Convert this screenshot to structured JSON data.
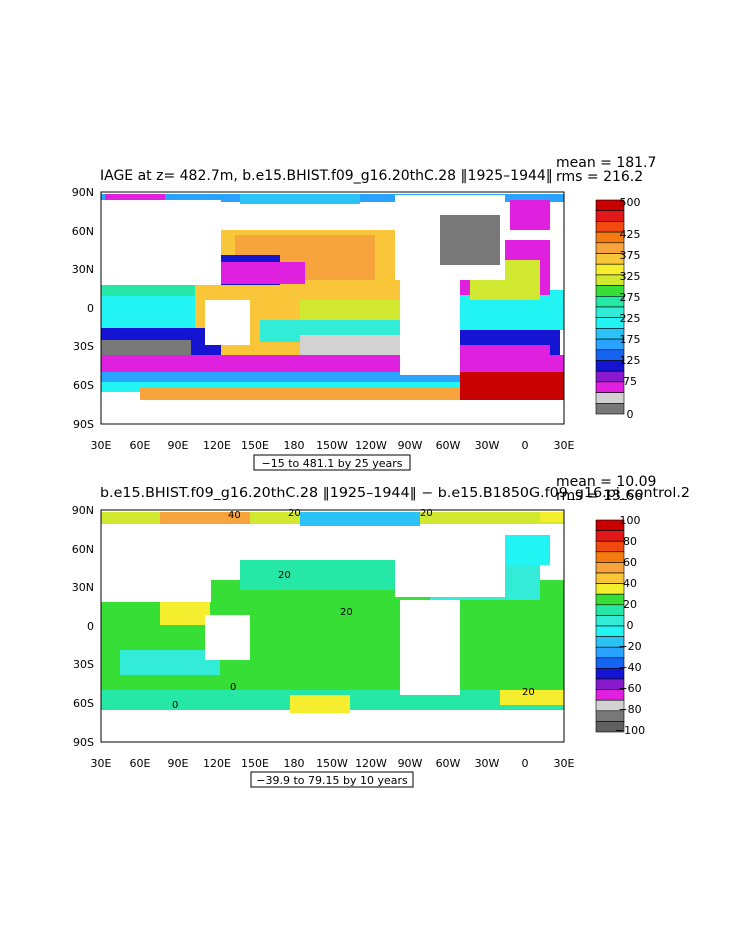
{
  "panels": [
    {
      "title": "IAGE at z= 482.7m, b.e15.BHIST.f09_g16.20thC.28 ‖1925–1944‖",
      "stats": {
        "mean": "mean = 181.7",
        "rms": "rms = 216.2"
      },
      "range_note": "−15 to 481.1 by 25 years",
      "colorbar": {
        "labels": [
          "500",
          "425",
          "375",
          "325",
          "275",
          "225",
          "175",
          "125",
          "75",
          "0"
        ],
        "colors": [
          "#c80000",
          "#e01818",
          "#f04a10",
          "#f57a10",
          "#f7a43c",
          "#f8c638",
          "#f5ee2e",
          "#d0e830",
          "#36de36",
          "#26e8a6",
          "#32ecd8",
          "#22f4f4",
          "#2bc3f5",
          "#2aa2ff",
          "#1565f2",
          "#1414d2",
          "#8a18cc",
          "#df20df",
          "#d2d2d2",
          "#787878"
        ]
      }
    },
    {
      "title": "b.e15.BHIST.f09_g16.20thC.28 ‖1925–1944‖ − b.e15.B1850G.f09_g16.pi_control.2",
      "stats": {
        "mean": "mean = 10.09",
        "rms": "rms = 13.66"
      },
      "range_note": "−39.9 to 79.15 by 10 years",
      "contour_labels": [
        "20",
        "40",
        "20",
        "20",
        "20",
        "20",
        "0",
        "0"
      ],
      "colorbar": {
        "labels": [
          "100",
          "80",
          "60",
          "40",
          "20",
          "0",
          "−20",
          "−40",
          "−60",
          "−80",
          "−100"
        ],
        "colors": [
          "#c80000",
          "#e01818",
          "#f04a10",
          "#f57a10",
          "#f7a43c",
          "#f8c638",
          "#f5ee2e",
          "#36de36",
          "#26e8a6",
          "#32ecd8",
          "#22f4f4",
          "#2bc3f5",
          "#2aa2ff",
          "#1565f2",
          "#1414d2",
          "#8a18cc",
          "#df20df",
          "#d2d2d2",
          "#787878",
          "#606060"
        ]
      }
    }
  ],
  "axes": {
    "lat_labels": [
      "90N",
      "60N",
      "30N",
      "0",
      "30S",
      "60S",
      "90S"
    ],
    "lon_labels": [
      "30E",
      "60E",
      "90E",
      "120E",
      "150E",
      "180",
      "150W",
      "120W",
      "90W",
      "60W",
      "30W",
      "0",
      "30E"
    ]
  },
  "colors": {
    "land": "#ffffff",
    "frame": "#000000"
  }
}
